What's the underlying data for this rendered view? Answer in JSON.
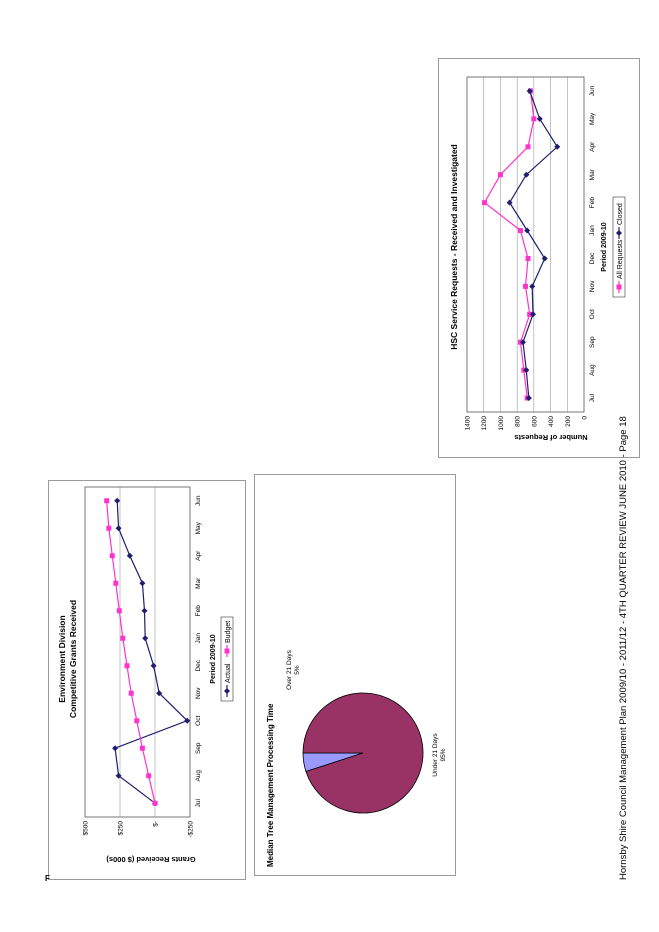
{
  "footer": "Hornsby Shire Council Management Plan 2009/10 - 2011/12 - 4TH QUARTER REVIEW JUNE 2010 - Page 18",
  "stray_mark": "F",
  "charts": {
    "grants": {
      "title_line1": "Environment Division",
      "title_line2": "Competitive Grants Received",
      "ylabel": "Grants Received ($ 000s)",
      "xlabel": "Period 2009-10",
      "yticks": [
        "$500",
        "$250",
        "$-",
        "-$250"
      ]
    },
    "hsc": {
      "title": "HSC Service Requests - Received and Investigated",
      "ylabel": "Number of Requests",
      "xlabel": "Period 2009-10",
      "yticks": [
        "1400",
        "1200",
        "1000",
        "800",
        "600",
        "400",
        "200",
        "0"
      ]
    },
    "tree": {
      "title": "Median Tree Management Processing Time",
      "over_label": "Over 21 Days",
      "over_pct": "5%",
      "under_label": "Under 21 Days",
      "under_pct": "95%"
    }
  },
  "chart_data": [
    {
      "type": "line",
      "title": "Environment Division Competitive Grants Received",
      "xlabel": "Period 2009-10",
      "ylabel": "Grants Received ($ 000s)",
      "ylim": [
        -250,
        500
      ],
      "categories": [
        "Jul",
        "Aug",
        "Sep",
        "Oct",
        "Nov",
        "Dec",
        "Jan",
        "Feb",
        "Mar",
        "Apr",
        "May",
        "Jun"
      ],
      "series": [
        {
          "name": "Actual",
          "color": "#1f1f6e",
          "values": [
            0,
            260,
            285,
            -230,
            -30,
            10,
            70,
            75,
            90,
            180,
            260,
            270
          ]
        },
        {
          "name": "Budget",
          "color": "#ff33cc",
          "values": [
            0,
            45,
            90,
            130,
            170,
            200,
            230,
            255,
            280,
            305,
            330,
            345
          ]
        }
      ],
      "legend": "bottom",
      "grid": true
    },
    {
      "type": "line",
      "title": "HSC Service Requests - Received and Investigated",
      "xlabel": "Period 2009-10",
      "ylabel": "Number of Requests",
      "ylim": [
        0,
        1400
      ],
      "categories": [
        "Jul",
        "Aug",
        "Sep",
        "Oct",
        "Nov",
        "Dec",
        "Jan",
        "Feb",
        "Mar",
        "Apr",
        "May",
        "Jun"
      ],
      "series": [
        {
          "name": "All Requests",
          "color": "#ff33cc",
          "values": [
            680,
            720,
            760,
            650,
            700,
            670,
            760,
            1190,
            1000,
            670,
            600,
            640
          ]
        },
        {
          "name": "Closed",
          "color": "#1f1f6e",
          "values": [
            660,
            690,
            730,
            610,
            620,
            470,
            680,
            890,
            690,
            320,
            530,
            650
          ]
        }
      ],
      "legend": "bottom",
      "grid": true
    },
    {
      "type": "pie",
      "title": "Median Tree Management Processing Time",
      "categories": [
        "Over 21 Days",
        "Under 21 Days"
      ],
      "values": [
        5,
        95
      ],
      "colors": [
        "#9999ff",
        "#993366"
      ]
    }
  ]
}
